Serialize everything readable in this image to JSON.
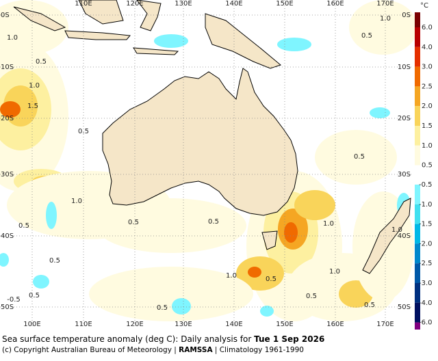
{
  "map": {
    "lon_labels_top": [
      "110E",
      "120E",
      "130E",
      "140E",
      "150E",
      "160E",
      "170E"
    ],
    "lon_labels_bottom": [
      "100E",
      "110E",
      "120E",
      "130E",
      "140E",
      "150E",
      "160E",
      "170E"
    ],
    "lat_labels_left": [
      "0S",
      "10S",
      "20S",
      "30S",
      "40S",
      "50S"
    ],
    "lat_labels_right": [
      "0S",
      "10S",
      "20S",
      "30S",
      "40S",
      "50S"
    ],
    "contour_labels": [
      "1.0",
      "0.5",
      "1.0",
      "1.5",
      "0.5",
      "1.0",
      "0.5",
      "0.5",
      "0.5",
      "0.5",
      "-0.5",
      "0.5",
      "1.0",
      "0.5",
      "1.0",
      "1.0",
      "0.5",
      "0.5",
      "0.5",
      "1.0",
      "0.5",
      "1.0",
      "0.5"
    ],
    "legend": {
      "unit": "°C",
      "positive": [
        {
          "label": "6.0",
          "color": "#7a0000"
        },
        {
          "label": "4.0",
          "color": "#b80000"
        },
        {
          "label": "3.0",
          "color": "#e53000"
        },
        {
          "label": "2.5",
          "color": "#f06a00"
        },
        {
          "label": "2.0",
          "color": "#f5a623"
        },
        {
          "label": "1.5",
          "color": "#f9d45a"
        },
        {
          "label": "1.0",
          "color": "#fdf0a0"
        },
        {
          "label": "0.5",
          "color": "#fffbe0"
        }
      ],
      "negative": [
        {
          "label": "-0.5",
          "color": "#7ff5ff"
        },
        {
          "label": "-1.0",
          "color": "#40e0f0"
        },
        {
          "label": "-1.5",
          "color": "#00b8e6"
        },
        {
          "label": "-2.0",
          "color": "#0088cc"
        },
        {
          "label": "-2.5",
          "color": "#0058a8"
        },
        {
          "label": "-3.0",
          "color": "#003080"
        },
        {
          "label": "-4.0",
          "color": "#001060"
        },
        {
          "label": "-6.0",
          "color": "#800080"
        }
      ]
    }
  },
  "caption": {
    "text": "Sea surface temperature anomaly (deg C): Daily analysis for ",
    "date": "Tue 1 Sep 2026"
  },
  "credits": {
    "copyright": "(c) Copyright Australian Bureau of Meteorology | ",
    "system": "RAMSSA",
    "climatology": " | Climatology 1961-1990"
  }
}
